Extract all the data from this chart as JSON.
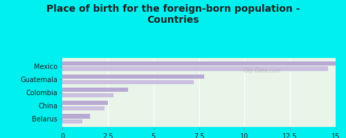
{
  "title": "Place of birth for the foreign-born population -\nCountries",
  "categories": [
    "Mexico",
    "Guatemala",
    "Colombia",
    "China",
    "Belarus"
  ],
  "values1": [
    15.0,
    7.8,
    3.6,
    2.5,
    1.5
  ],
  "values2": [
    14.6,
    7.2,
    2.8,
    2.3,
    1.1
  ],
  "bar_color1": "#b8a8d4",
  "bar_color2": "#ccc0e0",
  "background_outer": "#00f0f0",
  "background_inner": "#e8f5e8",
  "xlim": [
    0,
    15
  ],
  "xticks": [
    0,
    2.5,
    5,
    7.5,
    10,
    12.5,
    15
  ],
  "xtick_labels": [
    "0",
    "2.5",
    "5",
    "7.5",
    "10",
    "12.5",
    "15"
  ],
  "title_fontsize": 10,
  "title_color": "#222222",
  "watermark": "City-Data.com",
  "label_fontsize": 7,
  "tick_fontsize": 7
}
